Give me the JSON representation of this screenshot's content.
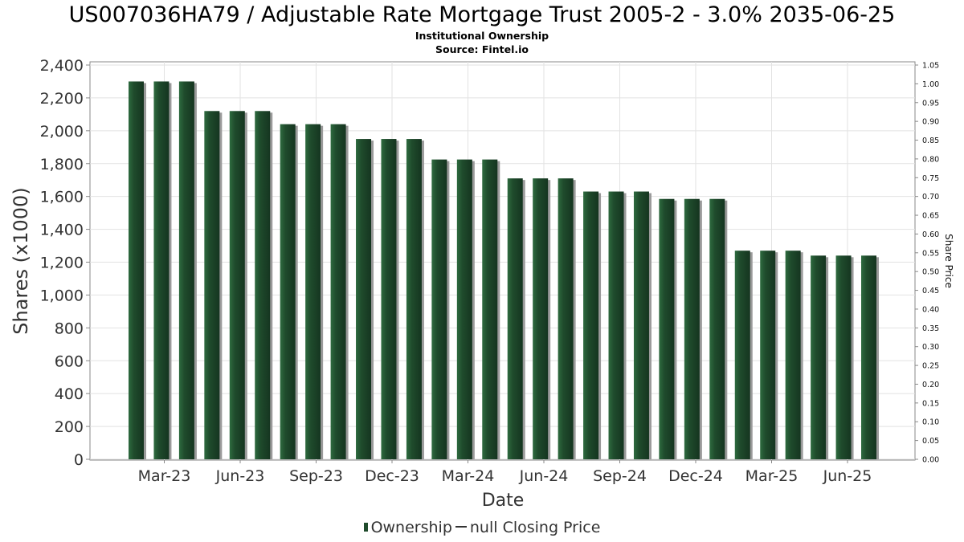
{
  "chart_data": {
    "type": "bar",
    "title": "US007036HA79 / Adjustable Rate Mortgage Trust 2005-2 - 3.0% 2035-06-25",
    "subtitle": "Institutional Ownership",
    "source": "Source: Fintel.io",
    "xlabel": "Date",
    "ylabel": "Shares (x1000)",
    "y2label": "Share Price",
    "ylim": [
      0,
      2400
    ],
    "y2lim": [
      0,
      1.05
    ],
    "yticks": [
      "0",
      "200",
      "400",
      "600",
      "800",
      "1,000",
      "1,200",
      "1,400",
      "1,600",
      "1,800",
      "2,000",
      "2,200",
      "2,400"
    ],
    "y2ticks": [
      "0.00",
      "0.05",
      "0.10",
      "0.15",
      "0.20",
      "0.25",
      "0.30",
      "0.35",
      "0.40",
      "0.45",
      "0.50",
      "0.55",
      "0.60",
      "0.65",
      "0.70",
      "0.75",
      "0.80",
      "0.85",
      "0.90",
      "0.95",
      "1.00",
      "1.05"
    ],
    "xticks": [
      "Mar-23",
      "Jun-23",
      "Sep-23",
      "Dec-23",
      "Mar-24",
      "Jun-24",
      "Sep-24",
      "Dec-24",
      "Mar-25",
      "Jun-25"
    ],
    "grid": true,
    "bar_color": "#1f4b2c",
    "values": [
      2300,
      2300,
      2300,
      2120,
      2120,
      2120,
      2040,
      2040,
      2040,
      1950,
      1950,
      1950,
      1825,
      1825,
      1825,
      1710,
      1710,
      1710,
      1630,
      1630,
      1630,
      1585,
      1585,
      1585,
      1270,
      1270,
      1270,
      1240,
      1240,
      1240
    ],
    "legend": [
      {
        "label": "Ownership",
        "marker": "bar"
      },
      {
        "label": "null Closing Price",
        "marker": "line"
      }
    ],
    "legend_position": "bottom"
  }
}
